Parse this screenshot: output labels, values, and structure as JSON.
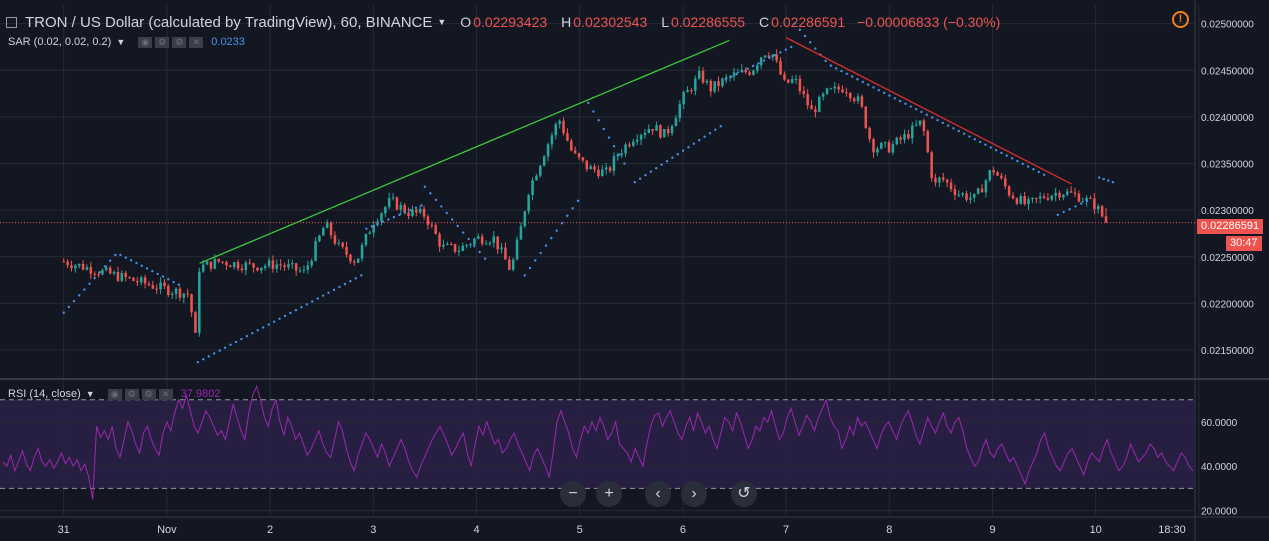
{
  "header": {
    "symbol_title": "TRON / US Dollar (calculated by TradingView), 60, BINANCE",
    "open_label": "O",
    "open_value": "0.02293423",
    "high_label": "H",
    "high_value": "0.02302543",
    "low_label": "L",
    "low_value": "0.02286555",
    "close_label": "C",
    "close_value": "0.02286591",
    "change": "−0.00006833 (−0.30%)",
    "warning_icon": "exclamation-circle-icon"
  },
  "sar_indicator": {
    "label": "SAR (0.02, 0.02, 0.2)",
    "value": "0.0233"
  },
  "rsi_indicator": {
    "label": "RSI (14, close)",
    "value": "37.9802"
  },
  "price_axis": {
    "ticks": [
      "0.02500000",
      "0.02450000",
      "0.02400000",
      "0.02350000",
      "0.02300000",
      "0.02250000",
      "0.02200000",
      "0.02150000"
    ],
    "current_price_tag": "0.02286591",
    "countdown_tag": "30:47"
  },
  "rsi_axis": {
    "ticks": [
      "60.0000",
      "40.0000",
      "20.0000"
    ]
  },
  "time_axis": {
    "labels": [
      "31",
      "Nov",
      "2",
      "3",
      "4",
      "5",
      "6",
      "7",
      "8",
      "9",
      "10",
      "18:30"
    ]
  },
  "nav_controls": [
    {
      "icon": "zoom-out-icon",
      "glyph": "−"
    },
    {
      "icon": "zoom-in-icon",
      "glyph": "+"
    },
    {
      "icon": "scroll-left-icon",
      "glyph": "‹"
    },
    {
      "icon": "scroll-right-icon",
      "glyph": "›"
    },
    {
      "icon": "reset-icon",
      "glyph": "↺"
    }
  ],
  "colors": {
    "background": "#131722",
    "up": "#26a69a",
    "down": "#ef5350",
    "sar_dots": "#4a90e2",
    "rsi_line": "#9c27b0",
    "rsi_band": "#2a2045",
    "uptrend_line": "#3cc83c",
    "downtrend_line": "#d32f2f",
    "grid": "#262a35"
  },
  "chart_data": [
    {
      "type": "candlestick",
      "title": "TRON / US Dollar (calculated by TradingView), 60, BINANCE",
      "interval": "60",
      "ylim": [
        0.0212,
        0.0252
      ],
      "yticks": [
        0.025,
        0.0245,
        0.024,
        0.0235,
        0.023,
        0.0225,
        0.022,
        0.0215
      ],
      "xtick_labels": [
        "31",
        "Nov",
        "2",
        "3",
        "4",
        "5",
        "6",
        "7",
        "8",
        "9",
        "10",
        "18:30"
      ],
      "last_ohlc": {
        "open": 0.02293423,
        "high": 0.02302543,
        "low": 0.02286555,
        "close": 0.02286591
      },
      "current_price": 0.02286591,
      "price_path": [
        [
          0.0,
          0.02245
        ],
        [
          3.0,
          0.0223
        ],
        [
          6.0,
          0.02215
        ],
        [
          7.3,
          0.0221
        ],
        [
          7.65,
          0.0216
        ],
        [
          7.85,
          0.02238
        ],
        [
          9.0,
          0.02245
        ],
        [
          11.0,
          0.0224
        ],
        [
          12.5,
          0.02242
        ],
        [
          14.0,
          0.02233
        ],
        [
          15.2,
          0.02285
        ],
        [
          16.0,
          0.0226
        ],
        [
          17.0,
          0.02245
        ],
        [
          18.0,
          0.02288
        ],
        [
          19.0,
          0.0231
        ],
        [
          20.0,
          0.02298
        ],
        [
          21.0,
          0.02295
        ],
        [
          22.0,
          0.0226
        ],
        [
          23.0,
          0.02258
        ],
        [
          24.0,
          0.0227
        ],
        [
          25.0,
          0.0227
        ],
        [
          26.0,
          0.02235
        ],
        [
          26.6,
          0.02282
        ],
        [
          27.0,
          0.0232
        ],
        [
          28.0,
          0.02365
        ],
        [
          28.8,
          0.02398
        ],
        [
          29.6,
          0.0236
        ],
        [
          30.5,
          0.02345
        ],
        [
          31.6,
          0.0234
        ],
        [
          32.2,
          0.0236
        ],
        [
          33.2,
          0.0238
        ],
        [
          34.2,
          0.0239
        ],
        [
          35.0,
          0.0238
        ],
        [
          36.0,
          0.0242
        ],
        [
          37.0,
          0.02445
        ],
        [
          37.6,
          0.0243
        ],
        [
          38.3,
          0.02438
        ],
        [
          39.0,
          0.02445
        ],
        [
          40.0,
          0.0245
        ],
        [
          40.7,
          0.0247
        ],
        [
          41.2,
          0.02468
        ],
        [
          41.9,
          0.02435
        ],
        [
          42.5,
          0.0244
        ],
        [
          43.5,
          0.02405
        ],
        [
          44.3,
          0.02425
        ],
        [
          45.4,
          0.02432
        ],
        [
          46.3,
          0.02415
        ],
        [
          47.0,
          0.02368
        ],
        [
          48.0,
          0.02367
        ],
        [
          49.0,
          0.0238
        ],
        [
          49.9,
          0.02395
        ],
        [
          50.6,
          0.02325
        ],
        [
          51.0,
          0.02335
        ],
        [
          52.0,
          0.02318
        ],
        [
          53.0,
          0.02312
        ],
        [
          54.0,
          0.02345
        ],
        [
          55.0,
          0.02318
        ],
        [
          56.0,
          0.02305
        ],
        [
          57.0,
          0.02315
        ],
        [
          58.0,
          0.0232
        ],
        [
          59.0,
          0.02315
        ],
        [
          60.0,
          0.02305
        ],
        [
          60.6,
          0.02287
        ]
      ],
      "trendlines": [
        {
          "from": [
            7.9,
            0.02243
          ],
          "to": [
            38.7,
            0.02482
          ]
        },
        {
          "from": [
            42.0,
            0.02485
          ],
          "to": [
            58.6,
            0.02328
          ]
        }
      ],
      "sar_segments": [
        {
          "x": [
            0.0,
            3.0
          ],
          "y": [
            0.0219,
            0.02252
          ]
        },
        {
          "x": [
            3.3,
            6.7
          ],
          "y": [
            0.02252,
            0.0222
          ]
        },
        {
          "x": [
            7.8,
            17.3
          ],
          "y": [
            0.02137,
            0.0223
          ]
        },
        {
          "x": [
            17.6,
            20.8
          ],
          "y": [
            0.0228,
            0.02305
          ]
        },
        {
          "x": [
            21.0,
            24.5
          ],
          "y": [
            0.02325,
            0.02248
          ]
        },
        {
          "x": [
            26.8,
            29.9
          ],
          "y": [
            0.0223,
            0.0231
          ]
        },
        {
          "x": [
            30.5,
            32.6
          ],
          "y": [
            0.02415,
            0.0235
          ]
        },
        {
          "x": [
            33.2,
            38.2
          ],
          "y": [
            0.0233,
            0.0239
          ]
        },
        {
          "x": [
            38.5,
            42.3
          ],
          "y": [
            0.0244,
            0.02475
          ]
        },
        {
          "x": [
            42.5,
            44.3
          ],
          "y": [
            0.025,
            0.0246
          ]
        },
        {
          "x": [
            44.6,
            57.0
          ],
          "y": [
            0.02455,
            0.02338
          ]
        },
        {
          "x": [
            57.8,
            59.5
          ],
          "y": [
            0.02295,
            0.0231
          ]
        },
        {
          "x": [
            60.2,
            61.0
          ],
          "y": [
            0.02335,
            0.0233
          ]
        }
      ]
    },
    {
      "type": "line",
      "title": "RSI (14, close)",
      "ylim": [
        18,
        78
      ],
      "yticks": [
        60,
        40,
        20
      ],
      "bands": [
        30,
        70
      ],
      "last_value": 37.9802,
      "values": [
        42,
        40,
        45,
        38,
        42,
        47,
        41,
        38,
        44,
        48,
        42,
        40,
        43,
        39,
        42,
        46,
        41,
        44,
        40,
        43,
        38,
        41,
        35,
        25,
        58,
        53,
        56,
        52,
        58,
        48,
        44,
        52,
        60,
        56,
        50,
        46,
        55,
        58,
        52,
        48,
        45,
        55,
        60,
        56,
        64,
        70,
        66,
        72,
        65,
        58,
        55,
        60,
        65,
        62,
        58,
        54,
        56,
        52,
        60,
        68,
        62,
        56,
        52,
        64,
        72,
        76,
        70,
        62,
        58,
        66,
        70,
        60,
        54,
        62,
        58,
        52,
        55,
        50,
        45,
        48,
        52,
        56,
        50,
        46,
        44,
        52,
        60,
        56,
        48,
        42,
        38,
        45,
        50,
        55,
        52,
        48,
        44,
        50,
        46,
        40,
        44,
        48,
        52,
        48,
        42,
        38,
        35,
        40,
        44,
        48,
        52,
        55,
        58,
        54,
        50,
        45,
        48,
        52,
        55,
        46,
        40,
        50,
        58,
        54,
        60,
        55,
        50,
        52,
        46,
        48,
        52,
        55,
        50,
        46,
        42,
        38,
        45,
        48,
        44,
        40,
        35,
        46,
        60,
        65,
        60,
        55,
        48,
        44,
        52,
        58,
        55,
        60,
        56,
        62,
        58,
        52,
        55,
        60,
        50,
        48,
        46,
        42,
        48,
        44,
        40,
        50,
        58,
        63,
        64,
        58,
        62,
        65,
        60,
        55,
        52,
        58,
        62,
        56,
        64,
        60,
        55,
        58,
        52,
        48,
        55,
        62,
        60,
        56,
        64,
        60,
        54,
        48,
        52,
        58,
        56,
        62,
        60,
        65,
        58,
        52,
        55,
        62,
        66,
        60,
        54,
        58,
        63,
        60,
        56,
        62,
        66,
        70,
        62,
        58,
        56,
        48,
        52,
        58,
        54,
        62,
        58,
        60,
        56,
        52,
        48,
        54,
        58,
        60,
        56,
        52,
        58,
        62,
        65,
        60,
        54,
        50,
        56,
        62,
        58,
        55,
        60,
        64,
        58,
        55,
        60,
        62,
        56,
        48,
        44,
        40,
        42,
        48,
        52,
        46,
        44,
        48,
        50,
        46,
        42,
        44,
        40,
        36,
        32,
        38,
        42,
        46,
        52,
        55,
        48,
        44,
        40,
        38,
        42,
        46,
        48,
        44,
        40,
        36,
        42,
        46,
        44,
        42,
        48,
        52,
        46,
        42,
        38,
        40,
        44,
        50,
        46,
        42,
        44,
        46,
        50,
        48,
        44,
        46,
        42,
        40,
        38,
        42,
        46,
        44,
        40,
        38
      ]
    }
  ]
}
